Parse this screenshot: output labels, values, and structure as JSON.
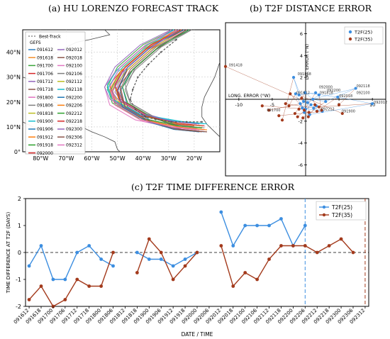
{
  "panels": {
    "a_title": "(a) HU LORENZO FORECAST TRACK",
    "b_title": "(b) T2F DISTANCE ERROR",
    "c_title": "(c) T2F TIME DIFFERENCE ERROR"
  },
  "map": {
    "legend_header": "GEFS",
    "best_track_label": "Best-Track",
    "forecast_runs": [
      {
        "label": "091612",
        "color": "#2f7fbf"
      },
      {
        "label": "091618",
        "color": "#f28e2b"
      },
      {
        "label": "091700",
        "color": "#3aa53a"
      },
      {
        "label": "091706",
        "color": "#d62728"
      },
      {
        "label": "091712",
        "color": "#9467bd"
      },
      {
        "label": "091718",
        "color": "#8c564b"
      },
      {
        "label": "091800",
        "color": "#e377c2"
      },
      {
        "label": "091806",
        "color": "#7f7f7f"
      },
      {
        "label": "091818",
        "color": "#bcbd22"
      },
      {
        "label": "091900",
        "color": "#17becf"
      },
      {
        "label": "091906",
        "color": "#1f77b4"
      },
      {
        "label": "091912",
        "color": "#ff7f0e"
      },
      {
        "label": "091918",
        "color": "#2ca02c"
      },
      {
        "label": "092000",
        "color": "#d62728"
      },
      {
        "label": "092012",
        "color": "#9467bd"
      },
      {
        "label": "092018",
        "color": "#8c564b"
      },
      {
        "label": "092100",
        "color": "#e377c2"
      },
      {
        "label": "092106",
        "color": "#7f7f7f"
      },
      {
        "label": "092112",
        "color": "#bcbd22"
      },
      {
        "label": "092118",
        "color": "#17becf"
      },
      {
        "label": "092200",
        "color": "#1f77b4"
      },
      {
        "label": "092206",
        "color": "#ff7f0e"
      },
      {
        "label": "092212",
        "color": "#2ca02c"
      },
      {
        "label": "092218",
        "color": "#d62728"
      },
      {
        "label": "092300",
        "color": "#9467bd"
      },
      {
        "label": "092306",
        "color": "#8c564b"
      },
      {
        "label": "092312",
        "color": "#e377c2"
      }
    ],
    "lat_ticks": [
      "0°",
      "10°N",
      "20°N",
      "30°N",
      "40°N"
    ],
    "lon_ticks": [
      "80°W",
      "70°W",
      "60°W",
      "50°W",
      "40°W",
      "30°W",
      "20°W"
    ],
    "best_track_points": [
      {
        "lon": -17,
        "lat": 12
      },
      {
        "lon": -23,
        "lat": 12
      },
      {
        "lon": -29,
        "lat": 12
      },
      {
        "lon": -35,
        "lat": 13
      },
      {
        "lon": -39,
        "lat": 14
      },
      {
        "lon": -43,
        "lat": 17
      },
      {
        "lon": -45,
        "lat": 21
      },
      {
        "lon": -44,
        "lat": 25
      },
      {
        "lon": -42,
        "lat": 30
      },
      {
        "lon": -38,
        "lat": 35
      },
      {
        "lon": -33,
        "lat": 40
      },
      {
        "lon": -27,
        "lat": 45
      }
    ],
    "track_shapes": [
      {
        "end_lon": -16,
        "ext": -49
      },
      {
        "end_lon": -15,
        "ext": -52
      },
      {
        "end_lon": -17,
        "ext": -54
      },
      {
        "end_lon": -16,
        "ext": -53
      },
      {
        "end_lon": -18,
        "ext": -51
      },
      {
        "end_lon": -15,
        "ext": -50
      },
      {
        "end_lon": -19,
        "ext": -55
      },
      {
        "end_lon": -16,
        "ext": -47
      },
      {
        "end_lon": -17,
        "ext": -52
      },
      {
        "end_lon": -15,
        "ext": -54
      },
      {
        "end_lon": -18,
        "ext": -48
      },
      {
        "end_lon": -16,
        "ext": -51
      },
      {
        "end_lon": -17,
        "ext": -53
      },
      {
        "end_lon": -20,
        "ext": -50
      },
      {
        "end_lon": -18,
        "ext": -55
      },
      {
        "end_lon": -15,
        "ext": -49
      },
      {
        "end_lon": -16,
        "ext": -52
      },
      {
        "end_lon": -19,
        "ext": -47
      },
      {
        "end_lon": -17,
        "ext": -51
      },
      {
        "end_lon": -16,
        "ext": -54
      },
      {
        "end_lon": -18,
        "ext": -50
      },
      {
        "end_lon": -15,
        "ext": -53
      },
      {
        "end_lon": -17,
        "ext": -48
      },
      {
        "end_lon": -16,
        "ext": -51
      },
      {
        "end_lon": -19,
        "ext": -52
      },
      {
        "end_lon": -17,
        "ext": -49
      },
      {
        "end_lon": -18,
        "ext": -53
      }
    ]
  },
  "chart_data": [
    {
      "type": "scatter",
      "title": "(b) T2F DISTANCE ERROR",
      "xlabel": "LONG. ERROR (°W)",
      "ylabel": "LAT. ERROR (°N)",
      "xlim": [
        -12,
        12
      ],
      "ylim": [
        -7,
        7
      ],
      "x_ticks": [
        -10,
        -5,
        5,
        10
      ],
      "y_ticks": [
        -6,
        -4,
        -2,
        2,
        4,
        6
      ],
      "legend_placement": "top-right",
      "series": [
        {
          "name": "T2F(25)",
          "color": "#3c8ee0",
          "points": [
            {
              "label": "091612",
              "x": -1.5,
              "y": 0.5
            },
            {
              "label": "091618",
              "x": -0.5,
              "y": -0.8
            },
            {
              "label": "091700",
              "x": 2.5,
              "y": -1.1
            },
            {
              "label": "091706",
              "x": 1.2,
              "y": -0.8
            },
            {
              "label": "091712",
              "x": 0.8,
              "y": -0.5
            },
            {
              "label": "091718",
              "x": -0.2,
              "y": -1.2
            },
            {
              "label": "091800",
              "x": -0.8,
              "y": -0.4
            },
            {
              "label": "091806",
              "x": 0.0,
              "y": -0.9
            },
            {
              "label": "091818",
              "x": -1.8,
              "y": 2.0
            },
            {
              "label": "091900",
              "x": -1.0,
              "y": 0.4
            },
            {
              "label": "091906",
              "x": 1.5,
              "y": 0.6
            },
            {
              "label": "091912",
              "x": 2.0,
              "y": 0.4
            },
            {
              "label": "091918",
              "x": 0.3,
              "y": -0.3
            },
            {
              "label": "092000",
              "x": 0.6,
              "y": -1.4
            },
            {
              "label": "092012",
              "x": 10.0,
              "y": -0.4
            },
            {
              "label": "092018",
              "x": 4.8,
              "y": 0.2
            },
            {
              "label": "092100",
              "x": -0.1,
              "y": 0.6
            },
            {
              "label": "092106",
              "x": 1.1,
              "y": 0.0
            },
            {
              "label": "092112",
              "x": 3.0,
              "y": -0.2
            },
            {
              "label": "092118",
              "x": 7.5,
              "y": 1.0
            },
            {
              "label": "092200",
              "x": -0.3,
              "y": -0.2
            },
            {
              "label": "092206",
              "x": 1.6,
              "y": -0.6
            }
          ]
        },
        {
          "name": "T2F(35)",
          "color": "#a33a1c",
          "points": [
            {
              "label": "091612",
              "x": -2.5,
              "y": -0.6
            },
            {
              "label": "091618",
              "x": -1.0,
              "y": -0.9
            },
            {
              "label": "091700",
              "x": -4.0,
              "y": -1.5
            },
            {
              "label": "091706",
              "x": -3.0,
              "y": -0.4
            },
            {
              "label": "091712",
              "x": -1.2,
              "y": -1.6
            },
            {
              "label": "091718",
              "x": 0.5,
              "y": -1.2
            },
            {
              "label": "091800",
              "x": -5.5,
              "y": -1.0
            },
            {
              "label": "091806",
              "x": -6.5,
              "y": -0.6
            },
            {
              "label": "091818",
              "x": -3.5,
              "y": -1.9
            },
            {
              "label": "091900",
              "x": 5.5,
              "y": -1.3
            },
            {
              "label": "091906",
              "x": -0.2,
              "y": -1.0
            },
            {
              "label": "091912",
              "x": 2.4,
              "y": -1.0
            },
            {
              "label": "091918",
              "x": -12.0,
              "y": 3.0
            },
            {
              "label": "092000",
              "x": -2.3,
              "y": 0.5
            },
            {
              "label": "092012",
              "x": 2.0,
              "y": -0.7
            },
            {
              "label": "092018",
              "x": 1.7,
              "y": -1.1
            },
            {
              "label": "092100",
              "x": -0.6,
              "y": 0.1
            },
            {
              "label": "092106",
              "x": 1.4,
              "y": -0.5
            },
            {
              "label": "092112",
              "x": -0.4,
              "y": -1.7
            },
            {
              "label": "092118",
              "x": 5.0,
              "y": -0.5
            },
            {
              "label": "092200",
              "x": -1.6,
              "y": -1.3
            },
            {
              "label": "092206",
              "x": 0.4,
              "y": -1.6
            }
          ]
        }
      ],
      "point_labels_shown": [
        {
          "text": "091418",
          "x": -11.5,
          "y": 3.0
        },
        {
          "text": "091818",
          "x": -1.2,
          "y": 2.2
        },
        {
          "text": "091612",
          "x": -1.4,
          "y": 0.5
        },
        {
          "text": "091700",
          "x": -5.8,
          "y": -1.1
        },
        {
          "text": "091900",
          "x": 5.4,
          "y": -1.2
        },
        {
          "text": "092012",
          "x": 10.2,
          "y": -0.4
        },
        {
          "text": "092118",
          "x": 7.6,
          "y": 1.1
        },
        {
          "text": "092100",
          "x": 7.6,
          "y": 0.5
        },
        {
          "text": "092000",
          "x": 2.0,
          "y": 1.0
        },
        {
          "text": "092200",
          "x": 3.2,
          "y": 0.7
        },
        {
          "text": "092212",
          "x": 2.3,
          "y": -1.0
        },
        {
          "text": "092018",
          "x": 5.0,
          "y": 0.2
        },
        {
          "text": "091818",
          "x": 2.1,
          "y": 0.5
        }
      ]
    },
    {
      "type": "line",
      "title": "(c) T2F TIME DIFFERENCE ERROR",
      "xlabel": "DATE / TIME",
      "ylabel": "TIME DIFFERENCE AT T2F (DAYS)",
      "ylim": [
        -2,
        2
      ],
      "y_ticks": [
        -2,
        -1,
        0,
        1,
        2
      ],
      "legend_placement": "top-right",
      "categories": [
        "091612",
        "091618",
        "091700",
        "091706",
        "091712",
        "091718",
        "091800",
        "091806",
        "091812",
        "091818",
        "091900",
        "091906",
        "091912",
        "091918",
        "092000",
        "092006",
        "092012",
        "092018",
        "092100",
        "092106",
        "092112",
        "092118",
        "092200",
        "092206",
        "092212",
        "092218",
        "092300",
        "092306",
        "092312"
      ],
      "series": [
        {
          "name": "T2F(25)",
          "color": "#3c8ee0",
          "values": [
            -0.5,
            0.25,
            -1.0,
            -1.0,
            0.0,
            0.25,
            -0.25,
            -0.5,
            null,
            0.0,
            -0.25,
            -0.25,
            -0.5,
            -0.25,
            0.0,
            null,
            1.5,
            0.25,
            1.0,
            1.0,
            1.0,
            1.25,
            0.25,
            1.0,
            null,
            null,
            null,
            null,
            null
          ]
        },
        {
          "name": "T2F(35)",
          "color": "#a33a1c",
          "values": [
            -1.75,
            -1.25,
            -2.0,
            -1.75,
            -1.0,
            -1.25,
            -1.25,
            0.0,
            null,
            -0.75,
            0.5,
            0.0,
            -1.0,
            -0.5,
            0.0,
            null,
            0.25,
            -1.25,
            -0.75,
            -1.0,
            -0.25,
            0.25,
            0.25,
            0.25,
            0.0,
            0.25,
            0.5,
            0.0,
            null
          ]
        }
      ],
      "vlines": [
        {
          "at": "092206",
          "color": "#3c8ee0"
        },
        {
          "at": "092312",
          "color": "#a33a1c"
        }
      ]
    }
  ]
}
